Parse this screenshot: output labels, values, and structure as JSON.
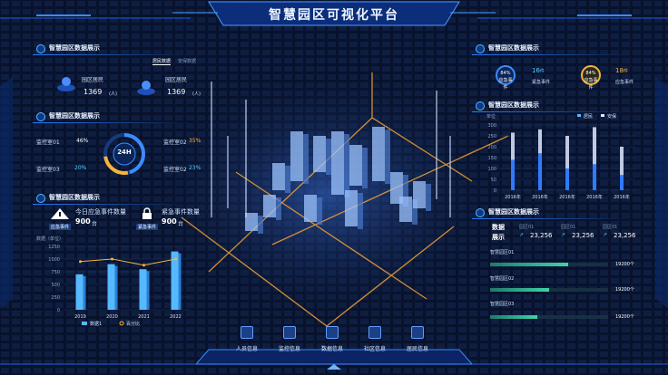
{
  "header": {
    "title": "智慧园区可视化平台"
  },
  "left": {
    "panel1": {
      "title": "智慧园区数据展示",
      "tab_a": "居民数据",
      "tab_b": "安保数据",
      "residents": [
        {
          "label": "园区居民",
          "value": "1369",
          "unit": "(人)"
        },
        {
          "label": "园区居民",
          "value": "1369",
          "unit": "(人)"
        }
      ]
    },
    "panel2": {
      "title": "智慧园区数据展示",
      "center": "24H",
      "items": [
        {
          "label": "监控室01",
          "value": "46%"
        },
        {
          "label": "监控室02",
          "value": "35%"
        },
        {
          "label": "监控室03",
          "value": "20%"
        },
        {
          "label": "监控室02",
          "value": "23%"
        }
      ]
    },
    "panel3": {
      "title": "智慧园区数据展示",
      "a_label": "今日应急事件数量",
      "a_value": "900",
      "a_unit": "台",
      "a_tag": "应急事件",
      "b_label": "紧急事件数量",
      "b_value": "900",
      "b_unit": "台",
      "b_tag": "紧急事件"
    }
  },
  "right": {
    "panel1": {
      "title": "智慧园区数据展示",
      "a": {
        "pct": "84",
        "pct_unit": "%",
        "tag": "应急事件",
        "count": "16",
        "count_unit": "件",
        "label": "紧急事件"
      },
      "b": {
        "pct": "84",
        "pct_unit": "%",
        "tag": "应急事件",
        "count": "18",
        "count_unit": "件",
        "label": "应急事件"
      }
    },
    "panel2": {
      "title": "智慧园区数据展示"
    },
    "panel3": {
      "title": "智慧园区数据展示",
      "head_a": "数据",
      "head_b": "展示",
      "cols": [
        {
          "label": "园区01",
          "value": "23,256"
        },
        {
          "label": "园区01",
          "value": "23,256"
        },
        {
          "label": "园区01",
          "value": "23,256"
        }
      ],
      "rows": [
        {
          "label": "智慧园区01",
          "value": "19200个",
          "pct": 0.66
        },
        {
          "label": "智慧园区02",
          "value": "19200个",
          "pct": 0.5
        },
        {
          "label": "智慧园区03",
          "value": "19200个",
          "pct": 0.4
        }
      ]
    }
  },
  "nav": [
    {
      "label": "人员信息"
    },
    {
      "label": "监控信息"
    },
    {
      "label": "数据信息"
    },
    {
      "label": "社区信息"
    },
    {
      "label": "居民信息"
    }
  ],
  "chart_data": [
    {
      "type": "bar",
      "title": "",
      "ylabel": "数据（单位）",
      "categories": [
        "2019",
        "2020",
        "2021",
        "2022"
      ],
      "series": [
        {
          "name": "数据1",
          "values": [
            700,
            900,
            800,
            1150
          ]
        },
        {
          "name": "百分比",
          "values": [
            950,
            1000,
            880,
            1000
          ]
        }
      ],
      "yticks": [
        "1250",
        "1000",
        "750",
        "500",
        "250",
        "0"
      ],
      "ylim": [
        0,
        1250
      ]
    },
    {
      "type": "bar",
      "title": "",
      "ylabel": "单位",
      "categories": [
        "2016年",
        "2016年",
        "2016年",
        "2016年",
        "2016年"
      ],
      "series": [
        {
          "name": "居民",
          "values": [
            265,
            280,
            250,
            290,
            200
          ]
        },
        {
          "name": "安保",
          "values": [
            140,
            170,
            100,
            120,
            70
          ]
        }
      ],
      "yticks": [
        "300",
        "250",
        "200",
        "150",
        "100",
        "50",
        "0"
      ],
      "ylim": [
        0,
        300
      ]
    }
  ],
  "colors": {
    "accent": "#2f7bff",
    "cyan": "#4fd0ff",
    "orange": "#ffb43a",
    "bg": "#040a1c"
  }
}
